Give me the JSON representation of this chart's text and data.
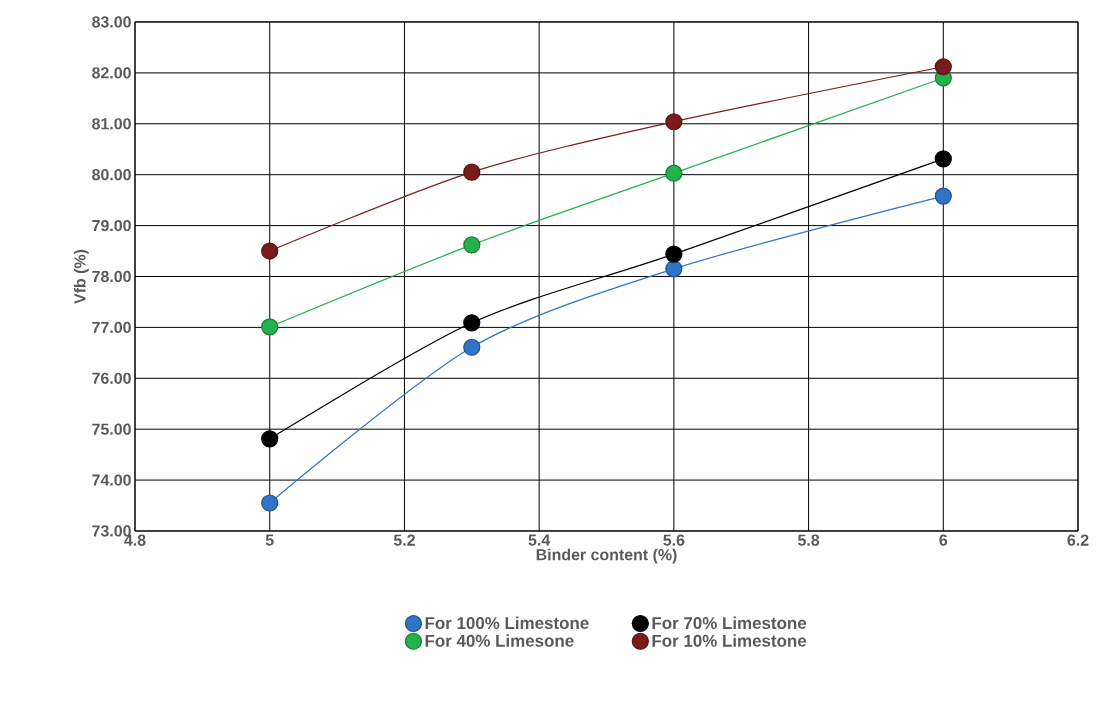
{
  "chart_data": {
    "type": "line",
    "xlabel": "Binder content (%)",
    "ylabel": "Vfb (%)",
    "x": [
      5,
      5.3,
      5.6,
      6
    ],
    "series": [
      {
        "name": "For 100% Limestone",
        "color": "#2e75c8",
        "values": [
          73.55,
          76.61,
          78.15,
          79.58
        ]
      },
      {
        "name": "For 70% Limestone",
        "color": "#000000",
        "values": [
          74.81,
          77.09,
          78.44,
          80.31
        ]
      },
      {
        "name": "For 40% Limesone",
        "color": "#22b14c",
        "values": [
          77.01,
          78.62,
          80.03,
          81.9
        ]
      },
      {
        "name": "For 10% Limestone",
        "color": "#7b1c1c",
        "values": [
          78.5,
          80.05,
          81.04,
          82.12
        ]
      }
    ],
    "xlim": [
      4.8,
      6.2
    ],
    "xticks": [
      4.8,
      5,
      5.2,
      5.4,
      5.6,
      5.8,
      6,
      6.2
    ],
    "ylim": [
      73,
      83
    ],
    "yticks": [
      {
        "value": 73,
        "label": "73.00"
      },
      {
        "value": 74,
        "label": "74.00"
      },
      {
        "value": 75,
        "label": "75.00"
      },
      {
        "value": 76,
        "label": "76.00"
      },
      {
        "value": 77,
        "label": "77.00"
      },
      {
        "value": 78,
        "label": "78.00"
      },
      {
        "value": 79,
        "label": "79.00"
      },
      {
        "value": 80,
        "label": "80.00"
      },
      {
        "value": 81,
        "label": "81.00"
      },
      {
        "value": 82,
        "label": "82.00"
      },
      {
        "value": 83,
        "label": "83.00"
      }
    ],
    "grid": true,
    "legend": "bottom",
    "marker": "circle",
    "line_style": "solid"
  }
}
